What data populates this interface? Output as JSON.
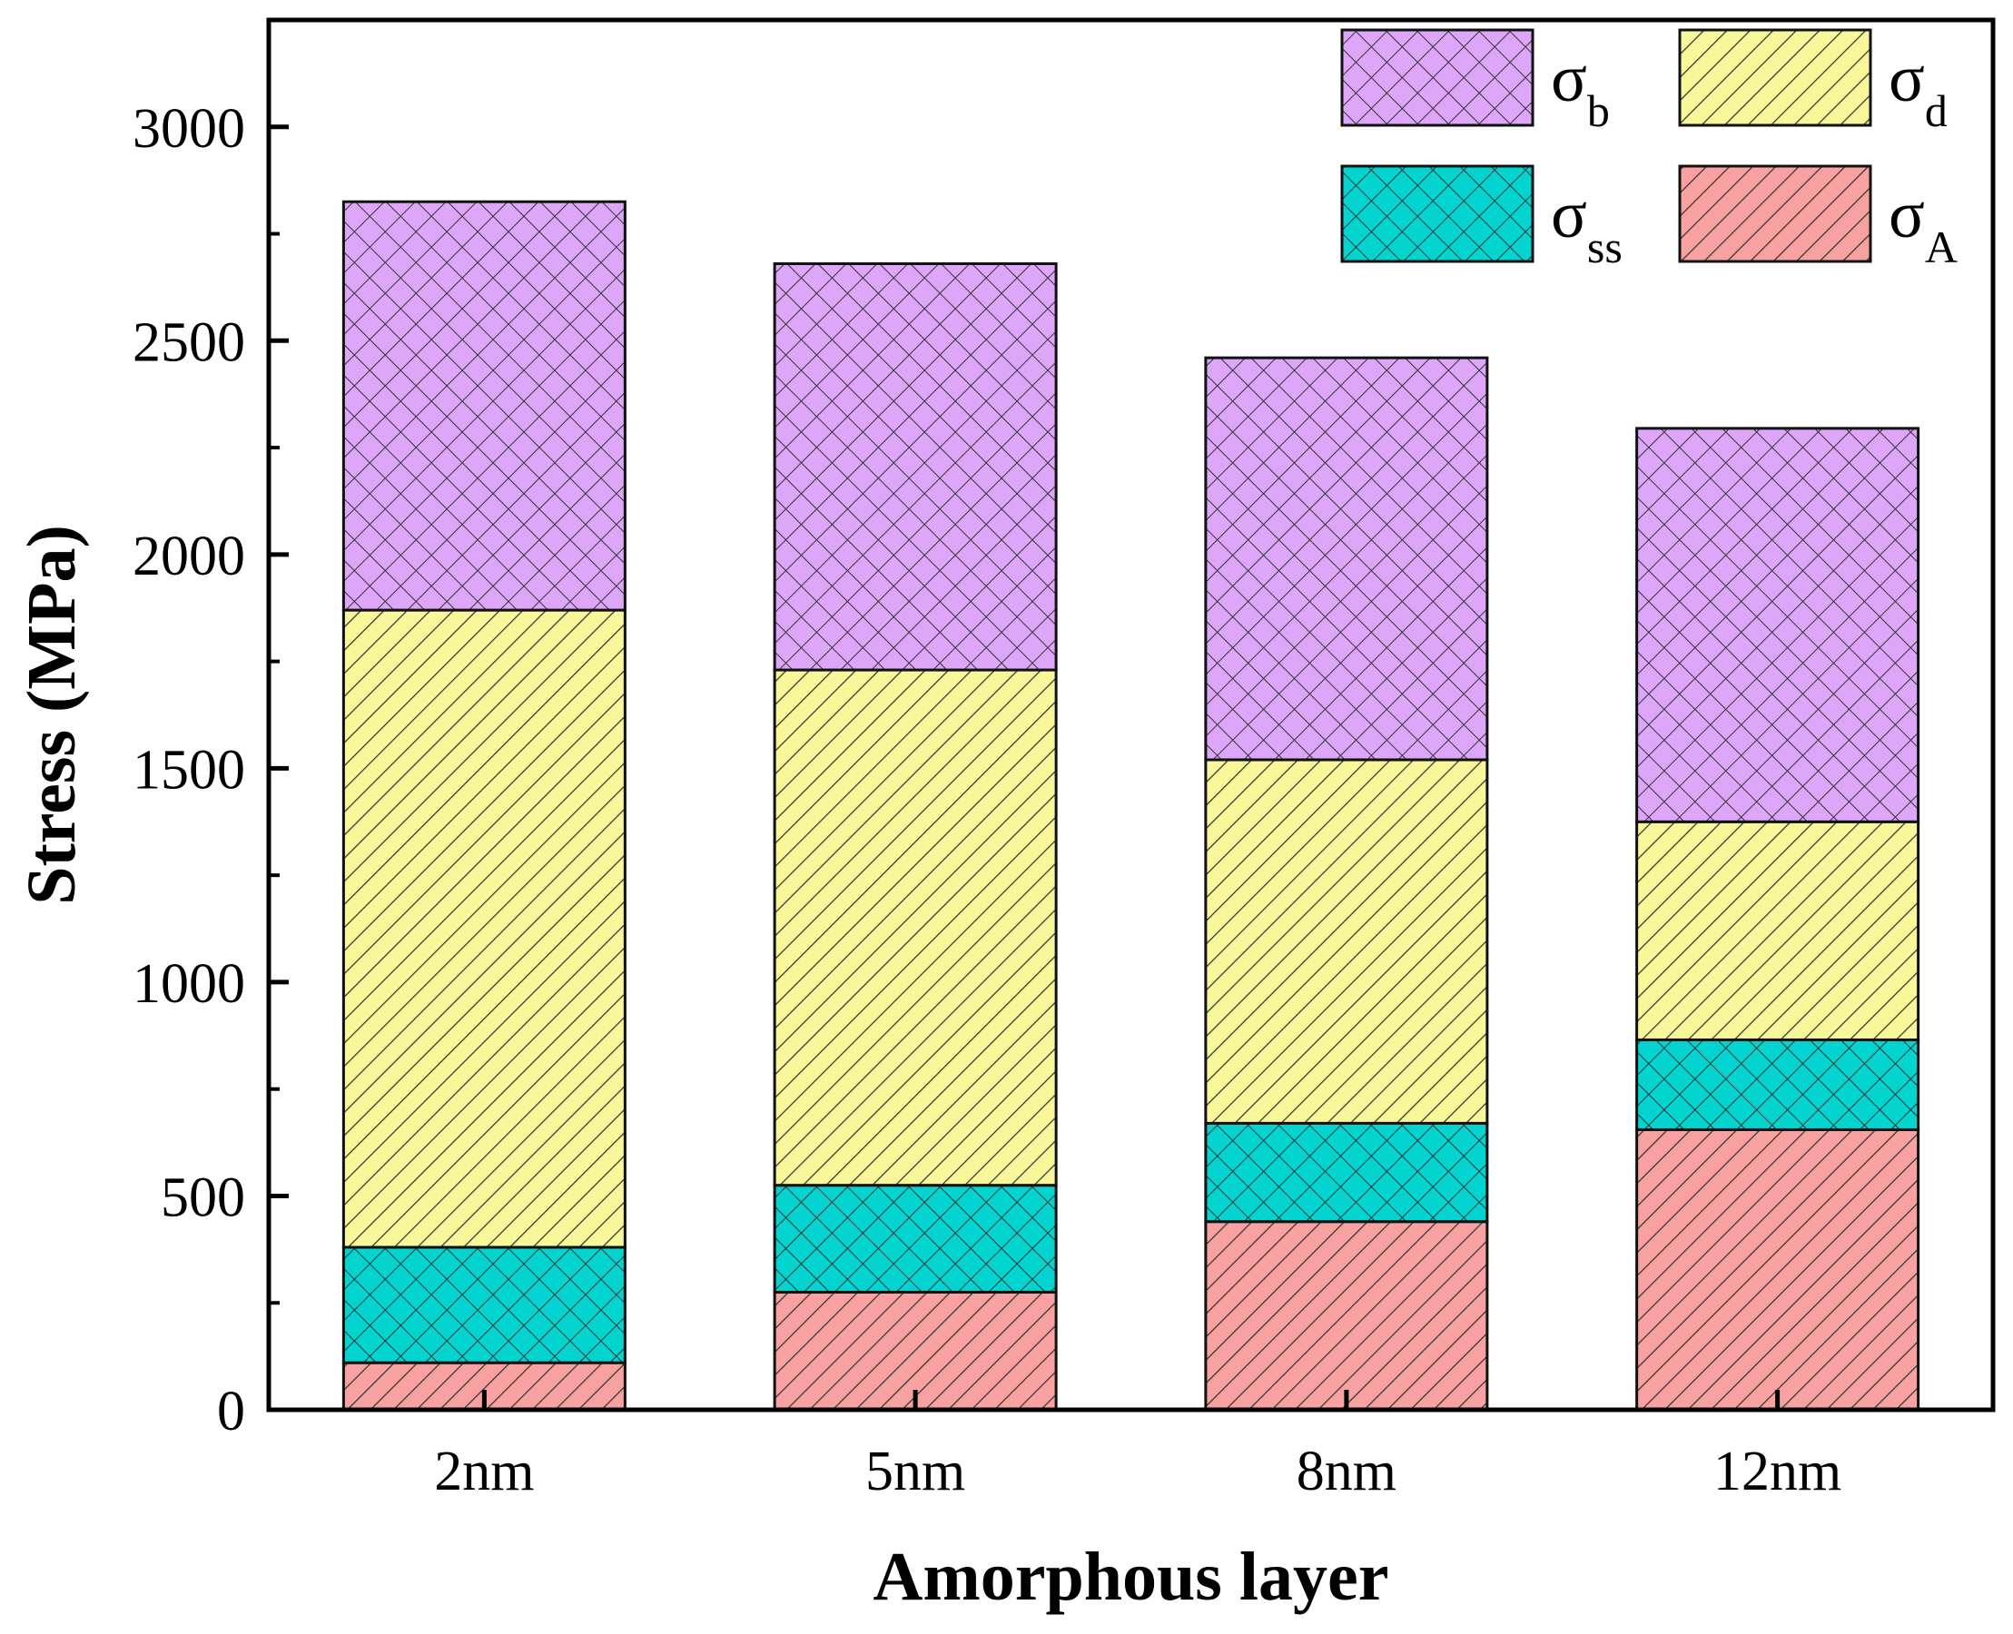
{
  "chart_data": {
    "type": "bar",
    "stacked": true,
    "title": "",
    "xlabel": "Amorphous layer",
    "ylabel": "Stress (MPa)",
    "ylim": [
      0,
      3250
    ],
    "yticks": [
      0,
      500,
      1000,
      1500,
      2000,
      2500,
      3000
    ],
    "grid": false,
    "legend_position": "top-right",
    "categories": [
      "2nm",
      "5nm",
      "8nm",
      "12nm"
    ],
    "series": [
      {
        "name": "σA",
        "symbol": "σ",
        "sub": "A",
        "color": "#f7a1a0",
        "pattern": "diag-right",
        "values": [
          110,
          275,
          440,
          655
        ]
      },
      {
        "name": "σss",
        "symbol": "σ",
        "sub": "ss",
        "color": "#04d4d0",
        "pattern": "cross",
        "values": [
          270,
          250,
          230,
          210
        ]
      },
      {
        "name": "σd",
        "symbol": "σ",
        "sub": "d",
        "color": "#f8f79a",
        "pattern": "diag-right",
        "values": [
          1490,
          1205,
          850,
          510
        ]
      },
      {
        "name": "σb",
        "symbol": "σ",
        "sub": "b",
        "color": "#dda6f8",
        "pattern": "cross",
        "values": [
          955,
          950,
          940,
          920
        ]
      }
    ],
    "legend_order": [
      "σb",
      "σd",
      "σss",
      "σA"
    ]
  }
}
